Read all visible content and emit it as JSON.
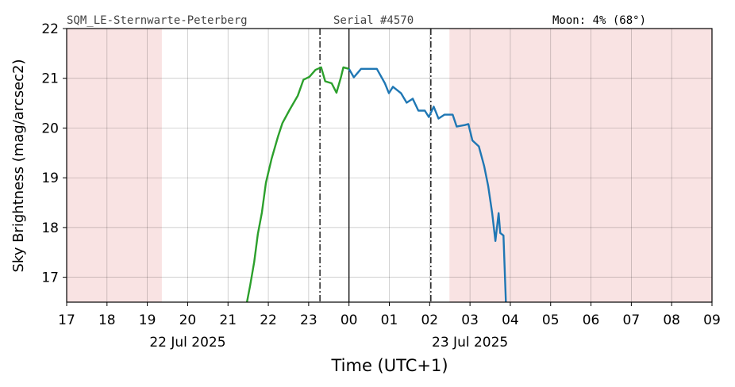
{
  "chart_data": {
    "type": "line",
    "header_left": "SQM_LE-Sternwarte-Peterberg",
    "header_center": "Serial #4570",
    "header_right": "Moon: 4% (68°)",
    "xlabel": "Time (UTC+1)",
    "ylabel": "Sky Brightness (mag/arcsec2)",
    "date_labels": [
      {
        "value": 20,
        "label": "22 Jul 2025"
      },
      {
        "value": 27,
        "label": "23 Jul 2025"
      }
    ],
    "xlim": [
      17,
      33
    ],
    "ylim": [
      16.5,
      22
    ],
    "xticks": [
      17,
      18,
      19,
      20,
      21,
      22,
      23,
      {
        "value": 24,
        "label": "00"
      },
      {
        "value": 25,
        "label": "01"
      },
      {
        "value": 26,
        "label": "02"
      },
      {
        "value": 27,
        "label": "03"
      },
      {
        "value": 28,
        "label": "04"
      },
      {
        "value": 29,
        "label": "05"
      },
      {
        "value": 30,
        "label": "06"
      },
      {
        "value": 31,
        "label": "07"
      },
      {
        "value": 32,
        "label": "08"
      },
      {
        "value": 33,
        "label": "09"
      }
    ],
    "yticks": [
      17,
      18,
      19,
      20,
      21,
      22
    ],
    "grid": true,
    "shaded_spans": [
      [
        17,
        19.36
      ],
      [
        26.49,
        33
      ]
    ],
    "shade_color": "#f9e3e3",
    "vlines": [
      {
        "x": 23.28,
        "style": "dashdot"
      },
      {
        "x": 24.0,
        "style": "solid"
      },
      {
        "x": 26.03,
        "style": "dashdot"
      }
    ],
    "series": [
      {
        "color": "#2ca02c",
        "x": [
          21.47,
          21.55,
          21.65,
          21.74,
          21.84,
          21.94,
          22.08,
          22.24,
          22.35,
          22.53,
          22.73,
          22.87,
          23.02,
          23.17,
          23.31,
          23.41,
          23.57,
          23.69,
          23.8,
          23.86,
          24.0
        ],
        "values": [
          16.5,
          16.84,
          17.31,
          17.87,
          18.3,
          18.9,
          19.38,
          19.83,
          20.1,
          20.37,
          20.65,
          20.97,
          21.03,
          21.17,
          21.22,
          20.94,
          20.9,
          20.71,
          21.02,
          21.22,
          21.19
        ]
      },
      {
        "color": "#1f77b4",
        "x": [
          24.0,
          24.12,
          24.3,
          24.69,
          24.89,
          24.99,
          25.09,
          25.29,
          25.43,
          25.58,
          25.72,
          25.88,
          25.98,
          26.1,
          26.22,
          26.37,
          26.57,
          26.67,
          26.87,
          26.96,
          27.06,
          27.22,
          27.35,
          27.45,
          27.55,
          27.63,
          27.71,
          27.75,
          27.83,
          27.89
        ],
        "values": [
          21.19,
          21.02,
          21.19,
          21.19,
          20.9,
          20.7,
          20.83,
          20.7,
          20.51,
          20.59,
          20.35,
          20.35,
          20.22,
          20.43,
          20.19,
          20.27,
          20.27,
          20.03,
          20.06,
          20.08,
          19.75,
          19.63,
          19.24,
          18.84,
          18.29,
          17.73,
          18.29,
          17.89,
          17.84,
          16.5
        ]
      }
    ]
  }
}
